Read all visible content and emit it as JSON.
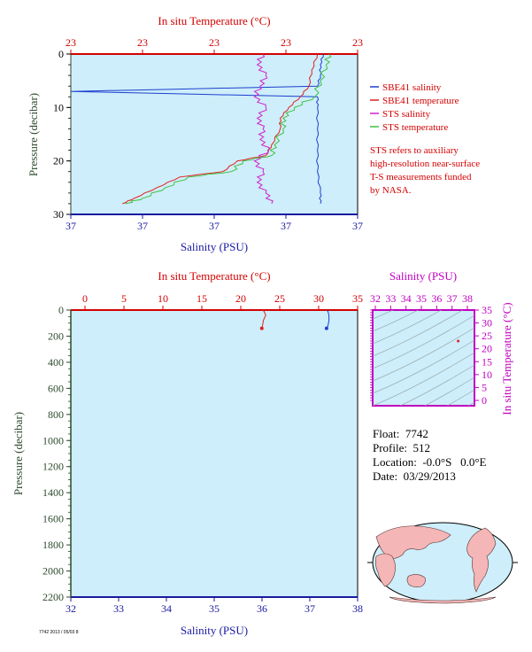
{
  "top_chart": {
    "temp_title": "In situ Temperature (°C)",
    "temp_ticks": [
      "23",
      "23",
      "23",
      "23",
      "23"
    ],
    "sal_title": "Salinity (PSU)",
    "sal_ticks": [
      "37",
      "37",
      "37",
      "37",
      "37"
    ],
    "pressure_title": "Pressure (decibar)",
    "pressure_ticks": [
      "0",
      "10",
      "20",
      "30"
    ]
  },
  "legend": {
    "items": [
      {
        "label": "SBE41 salinity",
        "color": "#1f3fd0"
      },
      {
        "label": "SBE41 temperature",
        "color": "#e02020"
      },
      {
        "label": "STS salinity",
        "color": "#d020d0"
      },
      {
        "label": "STS temperature",
        "color": "#40c040"
      }
    ],
    "note_lines": [
      "STS refers to auxiliary",
      "high-resolution near-surface",
      "T-S measurements funded",
      "by NASA."
    ]
  },
  "bottom_chart": {
    "temp_title": "In situ Temperature (°C)",
    "temp_ticks": [
      "0",
      "5",
      "10",
      "15",
      "20",
      "25",
      "30",
      "35"
    ],
    "sal_title": "Salinity (PSU)",
    "sal_ticks": [
      "32",
      "33",
      "34",
      "35",
      "36",
      "37",
      "38"
    ],
    "pressure_title": "Pressure (decibar)",
    "pressure_ticks": [
      "0",
      "200",
      "400",
      "600",
      "800",
      "1000",
      "1200",
      "1400",
      "1600",
      "1800",
      "2000",
      "2200"
    ]
  },
  "ts_inset": {
    "sal_title": "Salinity (PSU)",
    "sal_ticks": [
      "32",
      "33",
      "34",
      "35",
      "36",
      "37",
      "38"
    ],
    "temp_title": "In situ Temperature (°C)",
    "temp_ticks": [
      "35",
      "30",
      "25",
      "20",
      "15",
      "10",
      "5",
      "0"
    ]
  },
  "float_info": {
    "float_label": "Float:",
    "float_value": "7742",
    "profile_label": "Profile:",
    "profile_value": "512",
    "location_label": "Location:",
    "location_value": "-0.0°S   0.0°E",
    "date_label": "Date:",
    "date_value": "03/29/2013"
  },
  "footer_tiny": "7742 2013 / 05/03 8",
  "colors": {
    "plot_bg": "#cdeefa",
    "temperature": "#d40000",
    "salinity": "#1a1aa0",
    "pressure": "#2d4a2d",
    "inset": "#c000c0"
  },
  "chart_data": [
    {
      "type": "line",
      "title": "",
      "xlabel": "Salinity (PSU)",
      "x2label": "In situ Temperature (°C)",
      "ylabel": "Pressure (decibar)",
      "ylim": [
        30,
        0
      ],
      "series": [
        {
          "name": "SBE41 salinity",
          "pressure": [
            0,
            2,
            4,
            6,
            7,
            8,
            10,
            14,
            18,
            22,
            26,
            28
          ],
          "value_frac": [
            0.88,
            0.87,
            0.87,
            0.86,
            0.0,
            0.86,
            0.86,
            0.86,
            0.86,
            0.86,
            0.87,
            0.87
          ]
        },
        {
          "name": "SBE41 temperature",
          "pressure": [
            0,
            3,
            6,
            8,
            10,
            12,
            14,
            17,
            19,
            20,
            22,
            23,
            25,
            27,
            28
          ],
          "value_frac": [
            0.86,
            0.84,
            0.83,
            0.8,
            0.76,
            0.73,
            0.73,
            0.7,
            0.68,
            0.58,
            0.53,
            0.38,
            0.3,
            0.22,
            0.18
          ]
        },
        {
          "name": "STS salinity",
          "pressure": [
            0,
            2,
            4,
            6,
            8,
            10,
            12,
            14,
            16,
            18,
            20,
            22,
            24,
            26,
            28
          ],
          "value_frac": [
            0.67,
            0.65,
            0.68,
            0.66,
            0.64,
            0.68,
            0.65,
            0.67,
            0.66,
            0.69,
            0.64,
            0.67,
            0.65,
            0.68,
            0.7
          ]
        },
        {
          "name": "STS temperature",
          "pressure": [
            0,
            2,
            5,
            8,
            10,
            12,
            14,
            17,
            19,
            20,
            22,
            23,
            25,
            27,
            28
          ],
          "value_frac": [
            0.9,
            0.89,
            0.87,
            0.85,
            0.78,
            0.74,
            0.74,
            0.71,
            0.7,
            0.6,
            0.56,
            0.41,
            0.33,
            0.25,
            0.19
          ]
        }
      ]
    },
    {
      "type": "line",
      "title": "",
      "xlabel": "Salinity (PSU)",
      "x2label": "In situ Temperature (°C)",
      "ylabel": "Pressure (decibar)",
      "ylim": [
        2200,
        0
      ],
      "series": [
        {
          "name": "Temperature",
          "pressure": [
            0,
            10,
            40,
            80,
            120,
            140
          ],
          "temperature": [
            22.8,
            23.0,
            23.2,
            22.9,
            22.8,
            22.7
          ]
        },
        {
          "name": "Salinity",
          "pressure": [
            0,
            10,
            40,
            80,
            120,
            140
          ],
          "salinity": [
            37.35,
            37.38,
            37.4,
            37.4,
            37.38,
            37.35
          ]
        }
      ]
    },
    {
      "type": "scatter",
      "title": "",
      "xlabel": "Salinity (PSU)",
      "ylabel": "In situ Temperature (°C)",
      "xlim": [
        32,
        38
      ],
      "ylim": [
        0,
        35
      ],
      "series": [
        {
          "name": "T-S",
          "salinity": [
            37.4
          ],
          "temperature": [
            23
          ]
        }
      ]
    }
  ]
}
